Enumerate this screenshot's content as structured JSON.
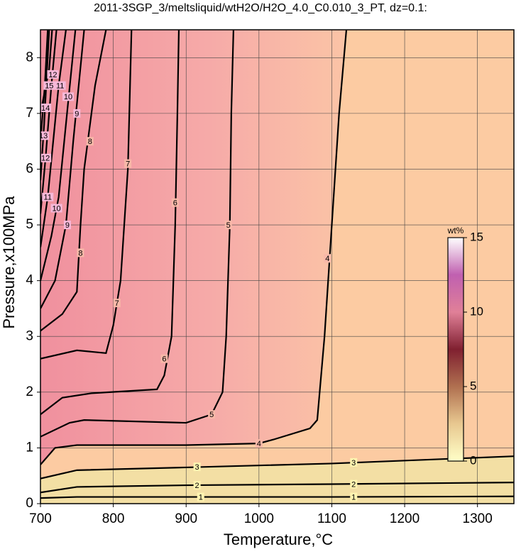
{
  "chart_data": {
    "type": "contour",
    "title": "2011-3SGP_3/meltsliquid/wtH2O/H2O_4.0_C0.010_3_PT, dz=0.1:",
    "x_label": "Temperature,°C",
    "y_label": "Pressure,x100MPa",
    "xlim": [
      700,
      1350
    ],
    "ylim": [
      0,
      8.5
    ],
    "xticks": [
      700,
      800,
      900,
      1000,
      1100,
      1200,
      1300
    ],
    "yticks": [
      0,
      1,
      2,
      3,
      4,
      5,
      6,
      7,
      8
    ],
    "grid": true,
    "line_color": "#000000",
    "series": [
      {
        "name": "1",
        "x": [
          700,
          750,
          900,
          1100,
          1350
        ],
        "values": [
          0.1,
          0.12,
          0.12,
          0.12,
          0.13
        ],
        "label_x": [
          920,
          1130
        ],
        "label_y": [
          0.12,
          0.12
        ]
      },
      {
        "name": "2",
        "x": [
          700,
          750,
          900,
          1100,
          1350
        ],
        "values": [
          0.2,
          0.3,
          0.33,
          0.35,
          0.38
        ],
        "label_x": [
          915,
          1130
        ],
        "label_y": [
          0.33,
          0.35
        ]
      },
      {
        "name": "3",
        "x": [
          700,
          750,
          900,
          1100,
          1350
        ],
        "values": [
          0.45,
          0.6,
          0.65,
          0.72,
          0.85
        ],
        "label_x": [
          915,
          1130
        ],
        "label_y": [
          0.66,
          0.74
        ]
      },
      {
        "name": "4",
        "x": [
          700,
          720,
          750,
          900,
          1000,
          1020,
          1070,
          1080,
          1090,
          1100,
          1110,
          1120
        ],
        "values": [
          0.7,
          1.0,
          1.05,
          1.05,
          1.08,
          1.15,
          1.35,
          1.5,
          3,
          5,
          7,
          8.5
        ],
        "label_x": [
          1000,
          1094
        ],
        "label_y": [
          1.08,
          4.4
        ]
      },
      {
        "name": "5",
        "x": [
          700,
          740,
          760,
          900,
          935,
          950,
          955,
          960,
          962,
          965
        ],
        "values": [
          1.2,
          1.45,
          1.5,
          1.45,
          1.6,
          2,
          3,
          5,
          7,
          8.5
        ],
        "label_x": [
          935,
          958
        ],
        "label_y": [
          1.6,
          5.0
        ]
      },
      {
        "name": "6",
        "x": [
          700,
          730,
          770,
          860,
          870,
          880,
          885,
          888,
          890
        ],
        "values": [
          1.6,
          1.9,
          1.98,
          2.05,
          2.3,
          3,
          5,
          7,
          8.5
        ],
        "label_x": [
          870,
          885
        ],
        "label_y": [
          2.6,
          5.4
        ]
      },
      {
        "name": "7",
        "x": [
          700,
          750,
          790,
          800,
          810,
          820,
          825
        ],
        "values": [
          2.6,
          2.75,
          2.7,
          3.2,
          4,
          6,
          8.5
        ],
        "label_x": [
          805,
          820
        ],
        "label_y": [
          3.6,
          6.1
        ]
      },
      {
        "name": "8",
        "x": [
          700,
          730,
          750,
          755,
          760,
          775,
          790
        ],
        "values": [
          3.1,
          3.4,
          3.8,
          5,
          6,
          7.5,
          8.5
        ],
        "label_x": [
          755,
          768
        ],
        "label_y": [
          4.5,
          6.5
        ]
      },
      {
        "name": "9",
        "x": [
          700,
          720,
          735,
          745,
          760
        ],
        "values": [
          3.5,
          4,
          5,
          6.5,
          8.5
        ],
        "label_x": [
          737,
          750
        ],
        "label_y": [
          5.0,
          7.0
        ]
      },
      {
        "name": "10",
        "x": [
          700,
          715,
          725,
          738,
          748
        ],
        "values": [
          4,
          4.8,
          5.5,
          7.2,
          8.5
        ],
        "label_x": [
          722,
          738
        ],
        "label_y": [
          5.3,
          7.3
        ]
      },
      {
        "name": "11",
        "x": [
          700,
          710,
          725,
          735
        ],
        "values": [
          4.6,
          5.5,
          7.5,
          8.5
        ],
        "label_x": [
          710,
          727
        ],
        "label_y": [
          5.5,
          7.5
        ]
      },
      {
        "name": "12",
        "x": [
          700,
          707,
          715,
          722
        ],
        "values": [
          5.2,
          6.2,
          7.5,
          8.5
        ],
        "label_x": [
          707,
          717
        ],
        "label_y": [
          6.2,
          7.7
        ]
      },
      {
        "name": "13",
        "x": [
          700,
          705,
          712
        ],
        "values": [
          5.8,
          6.8,
          8.5
        ],
        "label_x": [
          704
        ],
        "label_y": [
          6.6
        ]
      },
      {
        "name": "14",
        "x": [
          700,
          706,
          710
        ],
        "values": [
          6.5,
          7.5,
          8.5
        ],
        "label_x": [
          707
        ],
        "label_y": [
          7.1
        ]
      },
      {
        "name": "15",
        "x": [
          700,
          712,
          716
        ],
        "values": [
          7.0,
          7.8,
          8.5
        ],
        "label_x": [
          712
        ],
        "label_y": [
          7.5
        ]
      }
    ],
    "colorbar": {
      "label": "wt%",
      "lim": [
        0,
        15
      ],
      "ticks": [
        0,
        5,
        10,
        15
      ],
      "colors": [
        "#ffffc8",
        "#e8c890",
        "#b07050",
        "#802030",
        "#e08098",
        "#c060b0",
        "#ffffff"
      ]
    }
  }
}
